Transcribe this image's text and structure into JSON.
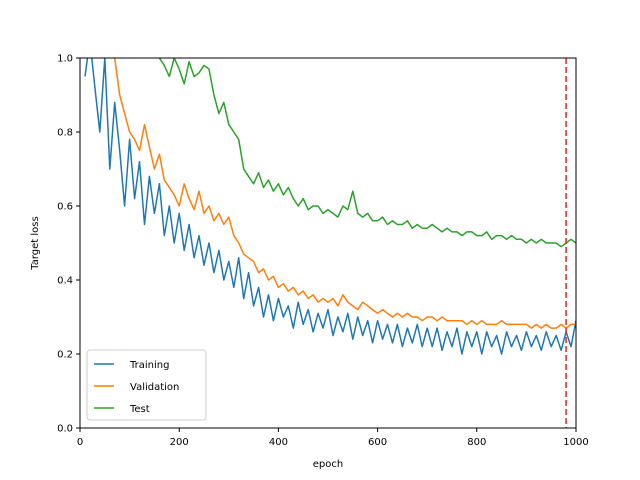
{
  "chart_data": {
    "type": "line",
    "xlabel": "epoch",
    "ylabel": "Target loss",
    "xlim": [
      0,
      1000
    ],
    "ylim": [
      0,
      1.0
    ],
    "xticks": [
      "0",
      "200",
      "400",
      "600",
      "800",
      "1000"
    ],
    "yticks": [
      "0.0",
      "0.2",
      "0.4",
      "0.6",
      "0.8",
      "1.0"
    ],
    "grid": false,
    "legend_position": "lower-left",
    "vline": {
      "x": 980,
      "color": "#d62728",
      "style": "dashed"
    },
    "series": [
      {
        "name": "Training",
        "color": "#1f77b4",
        "x": [
          10,
          20,
          30,
          40,
          50,
          60,
          70,
          80,
          90,
          100,
          110,
          120,
          130,
          140,
          150,
          160,
          170,
          180,
          190,
          200,
          210,
          220,
          230,
          240,
          250,
          260,
          270,
          280,
          290,
          300,
          310,
          320,
          330,
          340,
          350,
          360,
          370,
          380,
          390,
          400,
          410,
          420,
          430,
          440,
          450,
          460,
          470,
          480,
          490,
          500,
          510,
          520,
          530,
          540,
          550,
          560,
          570,
          580,
          590,
          600,
          610,
          620,
          630,
          640,
          650,
          660,
          670,
          680,
          690,
          700,
          710,
          720,
          730,
          740,
          750,
          760,
          770,
          780,
          790,
          800,
          810,
          820,
          830,
          840,
          850,
          860,
          870,
          880,
          890,
          900,
          910,
          920,
          930,
          940,
          950,
          960,
          970,
          980,
          990,
          1000
        ],
        "values": [
          0.95,
          1.05,
          0.92,
          0.8,
          1.0,
          0.7,
          0.88,
          0.75,
          0.6,
          0.78,
          0.62,
          0.72,
          0.55,
          0.68,
          0.58,
          0.66,
          0.52,
          0.6,
          0.5,
          0.58,
          0.48,
          0.55,
          0.46,
          0.52,
          0.44,
          0.5,
          0.42,
          0.48,
          0.4,
          0.45,
          0.38,
          0.46,
          0.35,
          0.42,
          0.33,
          0.38,
          0.3,
          0.36,
          0.29,
          0.35,
          0.3,
          0.33,
          0.27,
          0.34,
          0.28,
          0.32,
          0.26,
          0.31,
          0.27,
          0.32,
          0.25,
          0.3,
          0.26,
          0.31,
          0.24,
          0.3,
          0.25,
          0.29,
          0.23,
          0.29,
          0.24,
          0.28,
          0.23,
          0.28,
          0.22,
          0.27,
          0.23,
          0.28,
          0.22,
          0.27,
          0.22,
          0.27,
          0.21,
          0.26,
          0.22,
          0.27,
          0.2,
          0.26,
          0.22,
          0.26,
          0.2,
          0.26,
          0.22,
          0.25,
          0.2,
          0.26,
          0.22,
          0.25,
          0.21,
          0.26,
          0.22,
          0.25,
          0.21,
          0.26,
          0.22,
          0.25,
          0.21,
          0.26,
          0.22,
          0.29
        ]
      },
      {
        "name": "Validation",
        "color": "#ff7f0e",
        "x": [
          70,
          80,
          90,
          100,
          110,
          120,
          130,
          140,
          150,
          160,
          170,
          180,
          190,
          200,
          210,
          220,
          230,
          240,
          250,
          260,
          270,
          280,
          290,
          300,
          310,
          320,
          330,
          340,
          350,
          360,
          370,
          380,
          390,
          400,
          410,
          420,
          430,
          440,
          450,
          460,
          470,
          480,
          490,
          500,
          510,
          520,
          530,
          540,
          550,
          560,
          570,
          580,
          590,
          600,
          610,
          620,
          630,
          640,
          650,
          660,
          670,
          680,
          690,
          700,
          710,
          720,
          730,
          740,
          750,
          760,
          770,
          780,
          790,
          800,
          810,
          820,
          830,
          840,
          850,
          860,
          870,
          880,
          890,
          900,
          910,
          920,
          930,
          940,
          950,
          960,
          970,
          980,
          990,
          1000
        ],
        "values": [
          1.0,
          0.9,
          0.85,
          0.8,
          0.78,
          0.75,
          0.82,
          0.76,
          0.7,
          0.74,
          0.67,
          0.65,
          0.63,
          0.6,
          0.66,
          0.62,
          0.59,
          0.64,
          0.58,
          0.6,
          0.56,
          0.58,
          0.55,
          0.57,
          0.52,
          0.5,
          0.47,
          0.46,
          0.45,
          0.42,
          0.43,
          0.4,
          0.41,
          0.38,
          0.39,
          0.37,
          0.38,
          0.36,
          0.37,
          0.35,
          0.36,
          0.34,
          0.35,
          0.34,
          0.35,
          0.33,
          0.36,
          0.34,
          0.33,
          0.32,
          0.34,
          0.33,
          0.32,
          0.31,
          0.32,
          0.31,
          0.3,
          0.31,
          0.3,
          0.31,
          0.3,
          0.3,
          0.29,
          0.3,
          0.3,
          0.29,
          0.3,
          0.29,
          0.29,
          0.29,
          0.29,
          0.28,
          0.29,
          0.28,
          0.29,
          0.28,
          0.28,
          0.28,
          0.29,
          0.28,
          0.28,
          0.28,
          0.28,
          0.28,
          0.27,
          0.28,
          0.27,
          0.28,
          0.27,
          0.27,
          0.28,
          0.27,
          0.28,
          0.28
        ]
      },
      {
        "name": "Test",
        "color": "#2ca02c",
        "x": [
          160,
          170,
          180,
          190,
          200,
          210,
          220,
          230,
          240,
          250,
          260,
          270,
          280,
          290,
          300,
          310,
          320,
          330,
          340,
          350,
          360,
          370,
          380,
          390,
          400,
          410,
          420,
          430,
          440,
          450,
          460,
          470,
          480,
          490,
          500,
          510,
          520,
          530,
          540,
          550,
          560,
          570,
          580,
          590,
          600,
          610,
          620,
          630,
          640,
          650,
          660,
          670,
          680,
          690,
          700,
          710,
          720,
          730,
          740,
          750,
          760,
          770,
          780,
          790,
          800,
          810,
          820,
          830,
          840,
          850,
          860,
          870,
          880,
          890,
          900,
          910,
          920,
          930,
          940,
          950,
          960,
          970,
          980,
          990,
          1000
        ],
        "values": [
          1.0,
          0.98,
          0.95,
          1.0,
          0.97,
          0.93,
          0.99,
          0.95,
          0.96,
          0.98,
          0.97,
          0.9,
          0.85,
          0.88,
          0.82,
          0.8,
          0.78,
          0.7,
          0.68,
          0.66,
          0.69,
          0.65,
          0.67,
          0.64,
          0.66,
          0.63,
          0.65,
          0.62,
          0.6,
          0.62,
          0.59,
          0.6,
          0.6,
          0.58,
          0.59,
          0.58,
          0.57,
          0.6,
          0.59,
          0.64,
          0.58,
          0.57,
          0.58,
          0.56,
          0.56,
          0.57,
          0.55,
          0.56,
          0.55,
          0.55,
          0.56,
          0.54,
          0.55,
          0.54,
          0.54,
          0.55,
          0.54,
          0.53,
          0.54,
          0.53,
          0.53,
          0.52,
          0.53,
          0.53,
          0.52,
          0.52,
          0.53,
          0.51,
          0.52,
          0.52,
          0.51,
          0.52,
          0.51,
          0.51,
          0.5,
          0.51,
          0.5,
          0.51,
          0.5,
          0.5,
          0.5,
          0.49,
          0.5,
          0.51,
          0.5
        ]
      }
    ]
  }
}
